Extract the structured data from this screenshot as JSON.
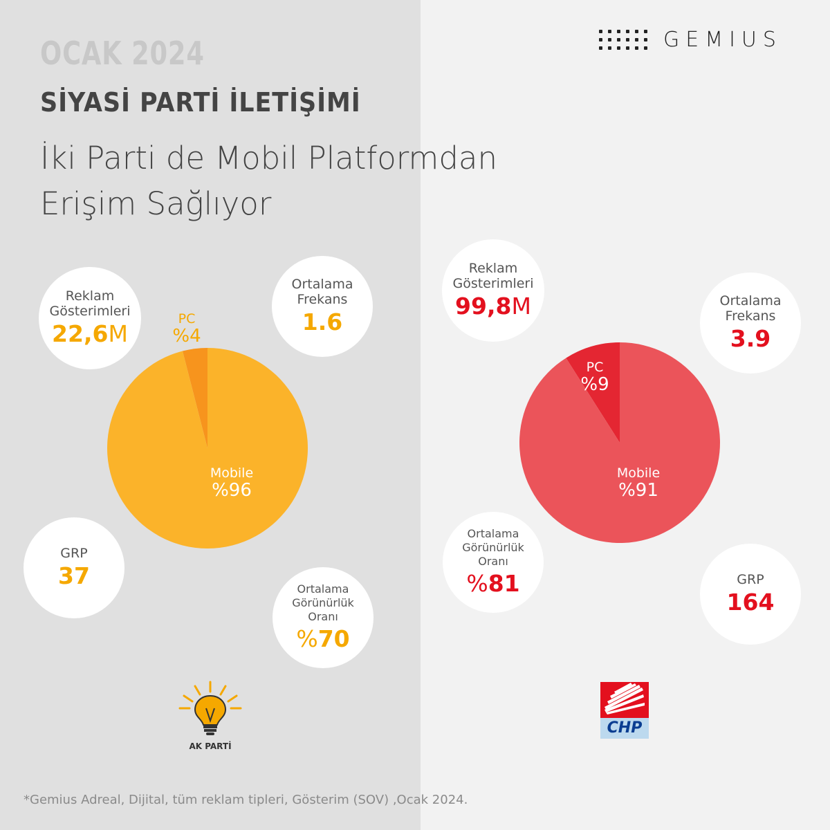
{
  "header": {
    "date": "OCAK 2024",
    "title": "SİYASİ PARTİ İLETİŞİMİ",
    "subtitle_line1": "İki Parti de Mobil Platformdan",
    "subtitle_line2": "Erişim Sağlıyor",
    "brand": "GEMIUS"
  },
  "akp": {
    "logo_text": "AK PARTİ",
    "impressions_label_1": "Reklam",
    "impressions_label_2": "Gösterimleri",
    "impressions_value": "22,6",
    "impressions_unit": "M",
    "frequency_label_1": "Ortalama",
    "frequency_label_2": "Frekans",
    "frequency_value": "1.6",
    "grp_label": "GRP",
    "grp_value": "37",
    "visibility_label_1": "Ortalama",
    "visibility_label_2": "Görünürlük",
    "visibility_label_3": "Oranı",
    "visibility_prefix": "%",
    "visibility_value": "70"
  },
  "chp": {
    "logo_text": "CHP",
    "impressions_label_1": "Reklam",
    "impressions_label_2": "Gösterimleri",
    "impressions_value": "99,8",
    "impressions_unit": "M",
    "frequency_label_1": "Ortalama",
    "frequency_label_2": "Frekans",
    "frequency_value": "3.9",
    "grp_label": "GRP",
    "grp_value": "164",
    "visibility_label_1": "Ortalama",
    "visibility_label_2": "Görünürlük",
    "visibility_label_3": "Oranı",
    "visibility_prefix": "%",
    "visibility_value": "81"
  },
  "chart_data": [
    {
      "type": "pie",
      "categories": [
        "PC",
        "Mobile"
      ],
      "values": [
        4,
        96
      ],
      "labels": [
        "%4",
        "%96"
      ],
      "colors": [
        "#f7941d",
        "#fbb32a"
      ]
    },
    {
      "type": "pie",
      "categories": [
        "PC",
        "Mobile"
      ],
      "values": [
        9,
        91
      ],
      "labels": [
        "%9",
        "%91"
      ],
      "colors": [
        "#e42632",
        "#eb545a"
      ]
    }
  ],
  "footnote": "*Gemius Adreal, Dijital, tüm reklam tipleri, Gösterim (SOV) ,Ocak 2024.",
  "colors": {
    "akp_accent": "#f5a800",
    "chp_accent": "#e3101e"
  }
}
